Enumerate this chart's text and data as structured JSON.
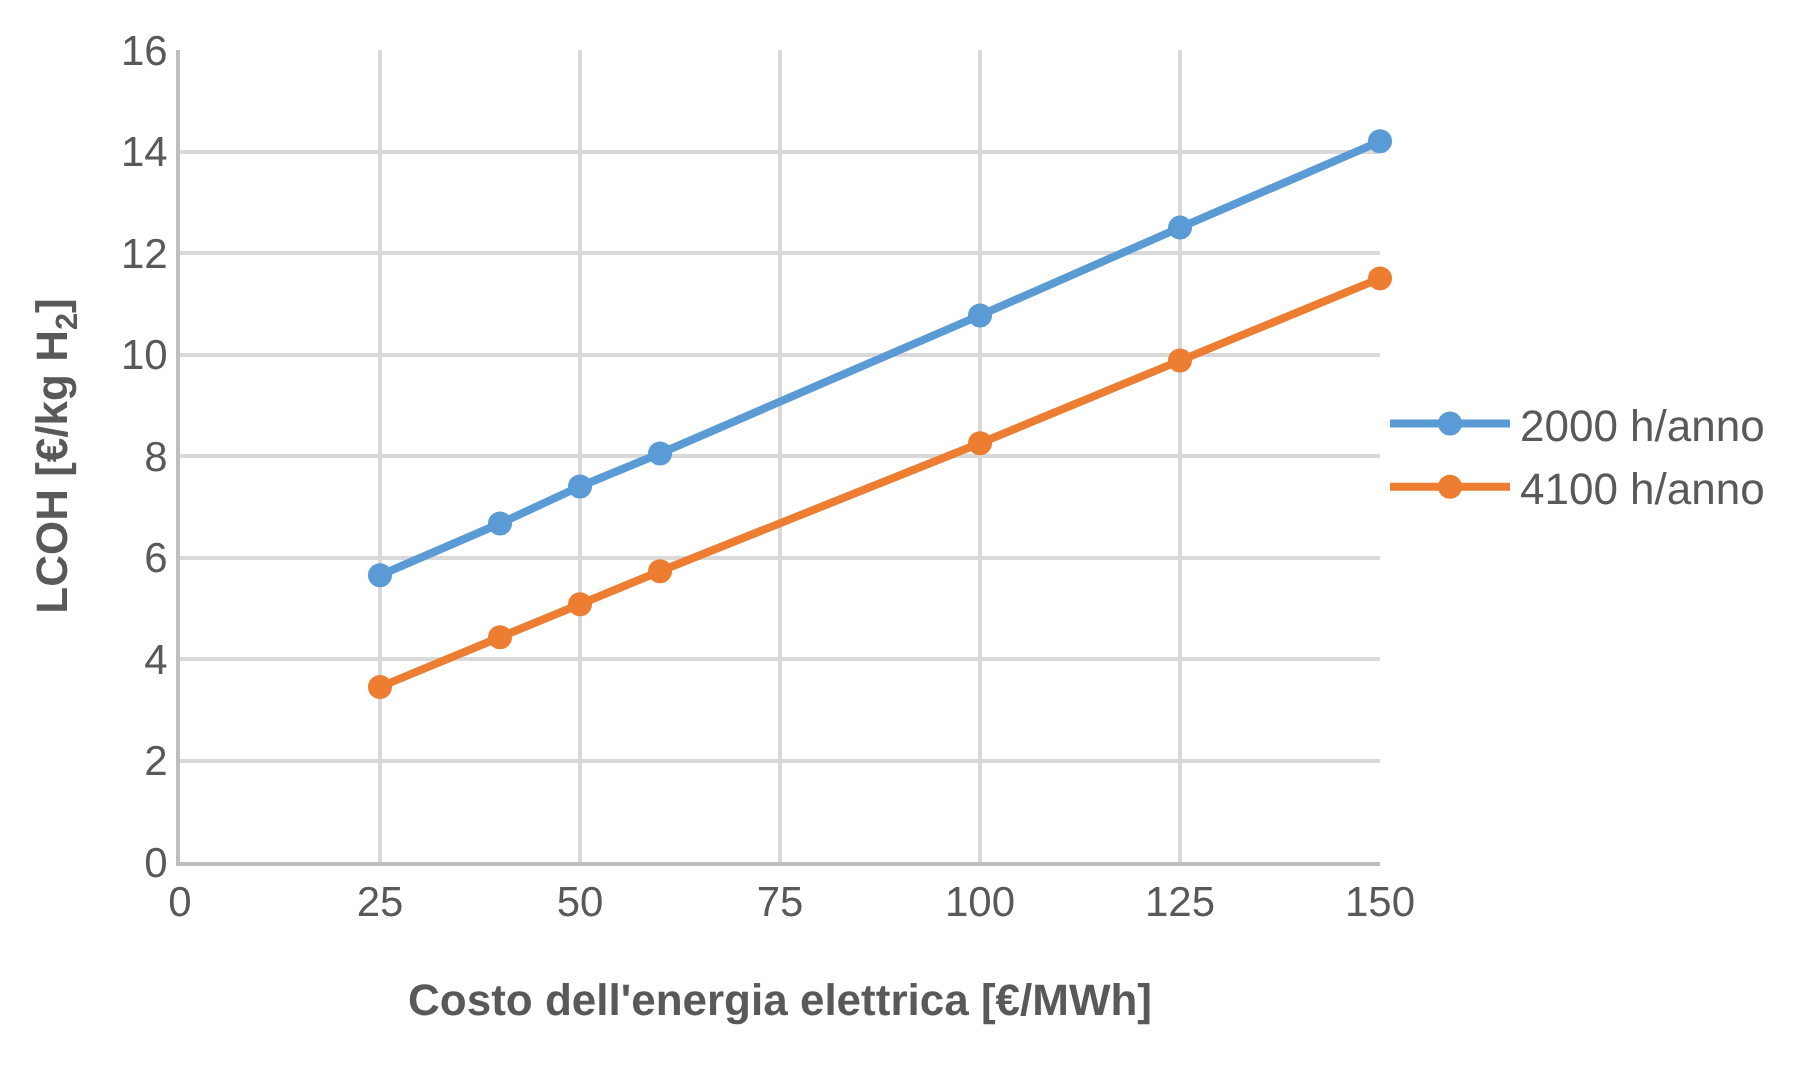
{
  "chart_data": {
    "type": "line",
    "xlabel": "Costo dell'energia elettrica [€/MWh]",
    "ylabel": "LCOH [€/kg H$_{2}$]",
    "x": [
      25,
      40,
      50,
      60,
      100,
      125,
      150
    ],
    "series": [
      {
        "name": "2000 h/anno",
        "color": "#5b9bd5",
        "values": [
          5.65,
          6.67,
          7.4,
          8.05,
          10.77,
          12.5,
          14.2
        ]
      },
      {
        "name": "4100 h/anno",
        "color": "#ed7d31",
        "values": [
          3.45,
          4.43,
          5.08,
          5.73,
          8.25,
          9.88,
          11.5
        ]
      }
    ],
    "xlim": [
      0,
      150
    ],
    "xticks": [
      0,
      25,
      50,
      75,
      100,
      125,
      150
    ],
    "ylim": [
      0,
      16
    ],
    "yticks": [
      0,
      2,
      4,
      6,
      8,
      10,
      12,
      14,
      16
    ],
    "grid": true,
    "legend": "right",
    "marker": "circle",
    "line_style": "solid"
  }
}
